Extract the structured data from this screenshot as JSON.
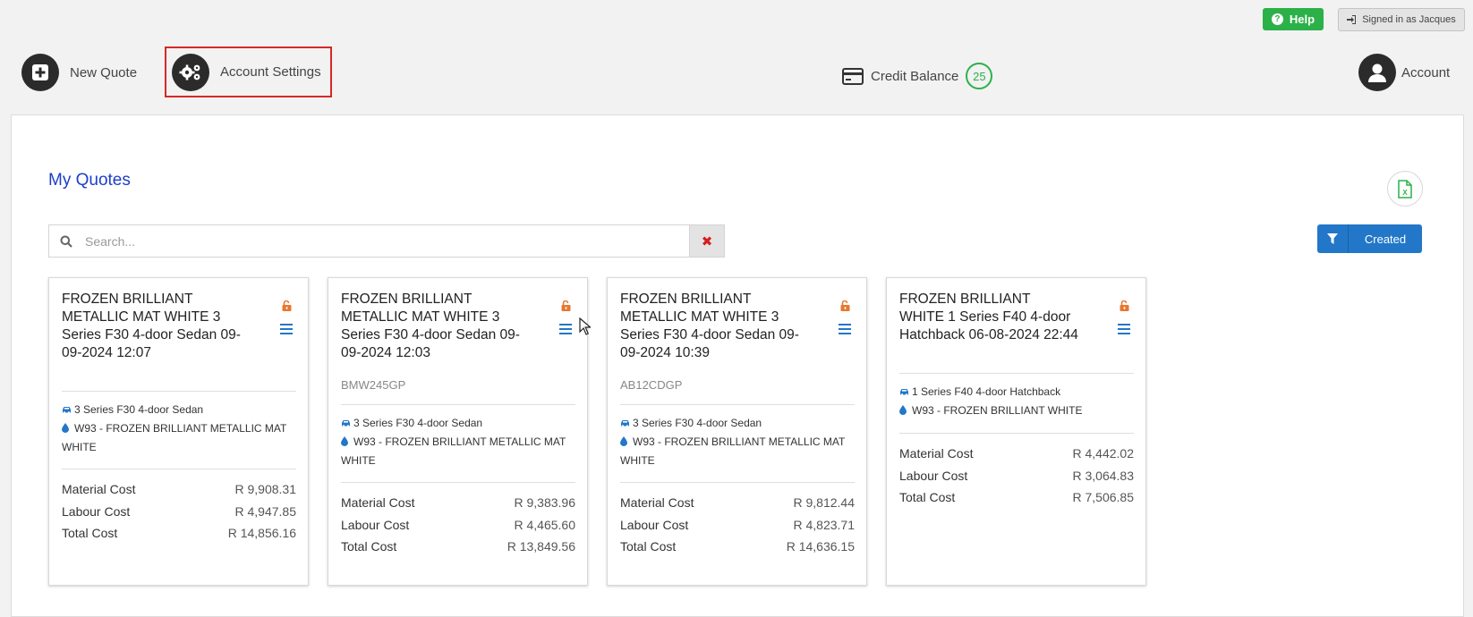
{
  "header": {
    "help_label": "Help",
    "signed_in_label": "Signed in as Jacques",
    "new_quote_label": "New Quote",
    "account_settings_label": "Account Settings",
    "credit_balance_label": "Credit Balance",
    "credit_balance_value": "25",
    "account_label": "Account"
  },
  "main": {
    "title": "My Quotes",
    "search_placeholder": "Search...",
    "clear_symbol": "✖",
    "sort_label": "Created"
  },
  "cards": [
    {
      "title": "FROZEN BRILLIANT METALLIC MAT WHITE 3 Series F30 4-door Sedan 09-09-2024 12:07",
      "registration": "",
      "model": "3 Series F30 4-door Sedan",
      "paint": "W93 - FROZEN BRILLIANT METALLIC MAT WHITE",
      "material_label": "Material Cost",
      "material": "R 9,908.31",
      "labour_label": "Labour Cost",
      "labour": "R 4,947.85",
      "total_label": "Total Cost",
      "total": "R 14,856.16"
    },
    {
      "title": "FROZEN BRILLIANT METALLIC MAT WHITE 3 Series F30 4-door Sedan 09-09-2024 12:03",
      "registration": "BMW245GP",
      "model": "3 Series F30 4-door Sedan",
      "paint": "W93 - FROZEN BRILLIANT METALLIC MAT WHITE",
      "material_label": "Material Cost",
      "material": "R 9,383.96",
      "labour_label": "Labour Cost",
      "labour": "R 4,465.60",
      "total_label": "Total Cost",
      "total": "R 13,849.56"
    },
    {
      "title": "FROZEN BRILLIANT METALLIC MAT WHITE 3 Series F30 4-door Sedan 09-09-2024 10:39",
      "registration": "AB12CDGP",
      "model": "3 Series F30 4-door Sedan",
      "paint": "W93 - FROZEN BRILLIANT METALLIC MAT WHITE",
      "material_label": "Material Cost",
      "material": "R 9,812.44",
      "labour_label": "Labour Cost",
      "labour": "R 4,823.71",
      "total_label": "Total Cost",
      "total": "R 14,636.15"
    },
    {
      "title": "FROZEN BRILLIANT WHITE 1 Series F40 4-door Hatchback 06-08-2024 22:44",
      "registration": "",
      "model": "1 Series F40 4-door Hatchback",
      "paint": "W93 - FROZEN BRILLIANT WHITE",
      "material_label": "Material Cost",
      "material": "R 4,442.02",
      "labour_label": "Labour Cost",
      "labour": "R 3,064.83",
      "total_label": "Total Cost",
      "total": "R 7,506.85"
    }
  ],
  "colors": {
    "accent_blue": "#2277c8",
    "title_blue": "#1d3fc9",
    "help_green": "#2cb149",
    "lock_orange": "#e8772e",
    "highlight_red": "#d62828"
  },
  "icons": [
    "question-circle-icon",
    "sign-in-icon",
    "plus-square-icon",
    "gears-icon",
    "credit-card-icon",
    "user-icon",
    "excel-file-icon",
    "search-icon",
    "filter-icon",
    "unlock-icon",
    "hamburger-menu-icon",
    "car-icon",
    "paint-drop-icon"
  ]
}
